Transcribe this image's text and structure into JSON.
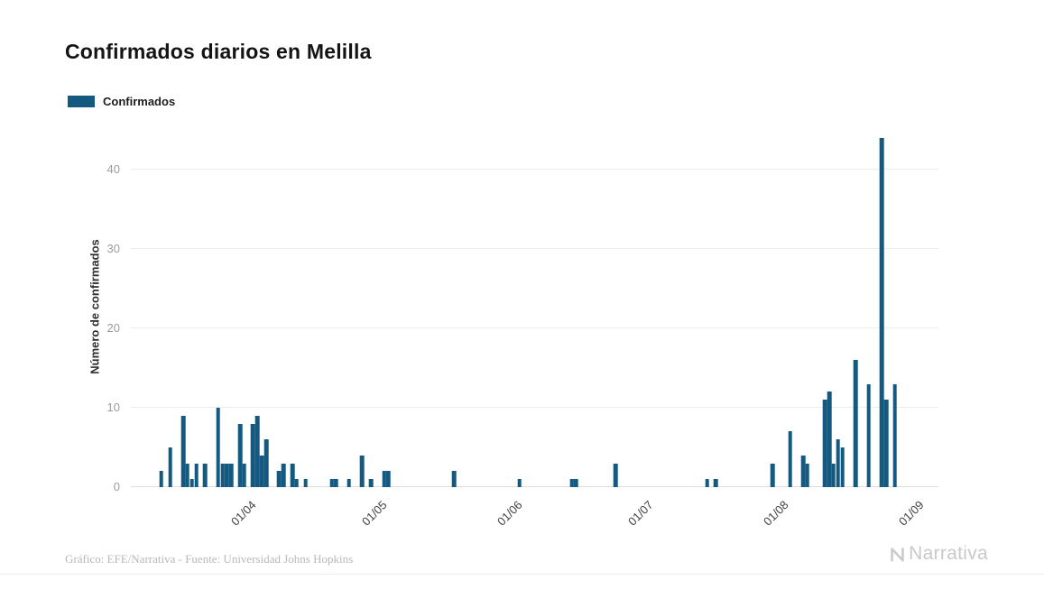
{
  "header": {
    "title": "Confirmados diarios en Melilla"
  },
  "legend": {
    "label": "Confirmados"
  },
  "footer": {
    "credit": "Gráfico: EFE/Narrativa - Fuente: Universidad Johns Hopkins",
    "brand": "Narrativa"
  },
  "chart_data": {
    "type": "bar",
    "title": "Confirmados diarios en Melilla",
    "xlabel": "",
    "ylabel": "Número de confirmados",
    "legend": [
      "Confirmados"
    ],
    "legend_position": "top-left",
    "grid": true,
    "bar_color": "#14597F",
    "ylim": [
      0,
      45
    ],
    "yticks": [
      0,
      10,
      20,
      30,
      40
    ],
    "xdomain": [
      "2020-03-05",
      "2020-09-06"
    ],
    "xticks": [
      {
        "date": "2020-04-01",
        "label": "01/04"
      },
      {
        "date": "2020-05-01",
        "label": "01/05"
      },
      {
        "date": "2020-06-01",
        "label": "01/06"
      },
      {
        "date": "2020-07-01",
        "label": "01/07"
      },
      {
        "date": "2020-08-01",
        "label": "01/08"
      },
      {
        "date": "2020-09-01",
        "label": "01/09"
      }
    ],
    "points": [
      {
        "date": "2020-03-12",
        "value": 2
      },
      {
        "date": "2020-03-14",
        "value": 5
      },
      {
        "date": "2020-03-17",
        "value": 9
      },
      {
        "date": "2020-03-18",
        "value": 3
      },
      {
        "date": "2020-03-19",
        "value": 1
      },
      {
        "date": "2020-03-20",
        "value": 3
      },
      {
        "date": "2020-03-22",
        "value": 3
      },
      {
        "date": "2020-03-25",
        "value": 10
      },
      {
        "date": "2020-03-26",
        "value": 3
      },
      {
        "date": "2020-03-27",
        "value": 3
      },
      {
        "date": "2020-03-28",
        "value": 3
      },
      {
        "date": "2020-03-30",
        "value": 8
      },
      {
        "date": "2020-03-31",
        "value": 3
      },
      {
        "date": "2020-04-02",
        "value": 8
      },
      {
        "date": "2020-04-03",
        "value": 9
      },
      {
        "date": "2020-04-04",
        "value": 4
      },
      {
        "date": "2020-04-05",
        "value": 6
      },
      {
        "date": "2020-04-08",
        "value": 2
      },
      {
        "date": "2020-04-09",
        "value": 3
      },
      {
        "date": "2020-04-11",
        "value": 3
      },
      {
        "date": "2020-04-12",
        "value": 1
      },
      {
        "date": "2020-04-14",
        "value": 1
      },
      {
        "date": "2020-04-20",
        "value": 1
      },
      {
        "date": "2020-04-21",
        "value": 1
      },
      {
        "date": "2020-04-24",
        "value": 1
      },
      {
        "date": "2020-04-27",
        "value": 4
      },
      {
        "date": "2020-04-29",
        "value": 1
      },
      {
        "date": "2020-05-02",
        "value": 2
      },
      {
        "date": "2020-05-03",
        "value": 2
      },
      {
        "date": "2020-05-18",
        "value": 2
      },
      {
        "date": "2020-06-02",
        "value": 1
      },
      {
        "date": "2020-06-14",
        "value": 1
      },
      {
        "date": "2020-06-15",
        "value": 1
      },
      {
        "date": "2020-06-24",
        "value": 3
      },
      {
        "date": "2020-07-15",
        "value": 1
      },
      {
        "date": "2020-07-17",
        "value": 1
      },
      {
        "date": "2020-07-30",
        "value": 3
      },
      {
        "date": "2020-08-03",
        "value": 7
      },
      {
        "date": "2020-08-06",
        "value": 4
      },
      {
        "date": "2020-08-07",
        "value": 3
      },
      {
        "date": "2020-08-11",
        "value": 11
      },
      {
        "date": "2020-08-12",
        "value": 12
      },
      {
        "date": "2020-08-13",
        "value": 3
      },
      {
        "date": "2020-08-14",
        "value": 6
      },
      {
        "date": "2020-08-15",
        "value": 5
      },
      {
        "date": "2020-08-18",
        "value": 16
      },
      {
        "date": "2020-08-21",
        "value": 13
      },
      {
        "date": "2020-08-24",
        "value": 44
      },
      {
        "date": "2020-08-25",
        "value": 11
      },
      {
        "date": "2020-08-27",
        "value": 13
      }
    ]
  }
}
